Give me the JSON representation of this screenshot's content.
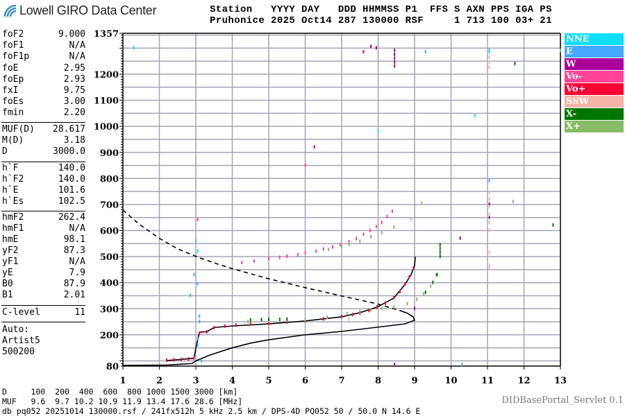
{
  "logo": {
    "text": "Lowell GIRO Data Center"
  },
  "header": {
    "line1": "Station   YYYY DAY   DDD HHMMSS P1  FFS S AXN PPS IGA PS",
    "line2": "Pruhonice 2025 Oct14 287 130000 RSF     1 713 100 03+ 21"
  },
  "params": [
    {
      "label": "foF2",
      "value": "9.000"
    },
    {
      "label": "foF1",
      "value": "N/A"
    },
    {
      "label": "foF1p",
      "value": "N/A"
    },
    {
      "label": "foE",
      "value": "2.95"
    },
    {
      "label": "foEp",
      "value": "2.93"
    },
    {
      "label": "fxI",
      "value": "9.75"
    },
    {
      "label": "foEs",
      "value": "3.00"
    },
    {
      "label": "fmin",
      "value": "2.20"
    },
    {
      "label": "MUF(D)",
      "value": "28.617"
    },
    {
      "label": "M(D)",
      "value": "3.18"
    },
    {
      "label": "D",
      "value": "3000.0"
    },
    {
      "label": "h`F",
      "value": "140.0"
    },
    {
      "label": "h`F2",
      "value": "140.0"
    },
    {
      "label": "h`E",
      "value": "101.6"
    },
    {
      "label": "h`Es",
      "value": "102.5"
    },
    {
      "label": "hmF2",
      "value": "262.4"
    },
    {
      "label": "hmF1",
      "value": "N/A"
    },
    {
      "label": "hmE",
      "value": "98.1"
    },
    {
      "label": "yF2",
      "value": "87.3"
    },
    {
      "label": "yF1",
      "value": "N/A"
    },
    {
      "label": "yE",
      "value": "7.9"
    },
    {
      "label": "B0",
      "value": "87.9"
    },
    {
      "label": "B1",
      "value": "2.01"
    },
    {
      "label": "C-level",
      "value": "11"
    }
  ],
  "autoscaling": {
    "line1": "Auto:",
    "line2": "Artist5",
    "line3": "500200"
  },
  "bottom": {
    "d_row": "D     100  200  400  600  800 1000 1500 3000 [km]",
    "muf_row": "MUF   9.6  9.7 10.2 10.9 11.9 13.4 17.6 28.6 [MHz]",
    "footer": "db pq052 20251014 130000.rsf / 241fx512h 5 kHz 2.5 km / DPS-4D PQ052 50 / 50.0 N 14.6 E",
    "servlet": "DIDBasePortal_Servlet 0.1"
  },
  "chart_data": {
    "type": "scatter",
    "xlim": [
      1,
      13
    ],
    "ylim": [
      80,
      1357
    ],
    "x_ticks": [
      "1",
      "2",
      "3",
      "4",
      "5",
      "6",
      "7",
      "8",
      "9",
      "10",
      "11",
      "12",
      "13"
    ],
    "y_ticks": [
      "80",
      "200",
      "300",
      "400",
      "500",
      "600",
      "700",
      "800",
      "900",
      "1000",
      "1100",
      "1200",
      "1357"
    ],
    "grid": true,
    "grid_x_step": 1,
    "grid_y_step": 50,
    "legend_position": "right",
    "legend": [
      {
        "name": "NNE",
        "color": "#11ddff"
      },
      {
        "name": "E",
        "color": "#44aaff"
      },
      {
        "name": "W",
        "color": "#aa0099"
      },
      {
        "name": "Vo-",
        "color": "#ff4499"
      },
      {
        "name": "Vo+",
        "color": "#ff0033"
      },
      {
        "name": "SSW",
        "color": "#f4b4a8"
      },
      {
        "name": "X-",
        "color": "#007700"
      },
      {
        "name": "X+",
        "color": "#88bb66"
      }
    ],
    "series": [
      {
        "name": "Vo+",
        "points": [
          [
            2.2,
            101
          ],
          [
            2.4,
            103
          ],
          [
            2.6,
            104
          ],
          [
            2.8,
            106
          ],
          [
            2.95,
            110
          ],
          [
            3.1,
            205
          ],
          [
            3.3,
            210
          ],
          [
            3.5,
            226
          ],
          [
            3.8,
            232
          ],
          [
            4.1,
            236
          ],
          [
            4.5,
            240
          ],
          [
            5.0,
            243
          ],
          [
            5.5,
            248
          ],
          [
            6.0,
            253
          ],
          [
            6.5,
            260
          ],
          [
            7.0,
            269
          ],
          [
            7.3,
            276
          ],
          [
            7.5,
            282
          ],
          [
            7.75,
            292
          ],
          [
            7.97,
            306
          ],
          [
            8.2,
            320
          ],
          [
            8.43,
            341
          ],
          [
            8.6,
            365
          ],
          [
            8.74,
            394
          ],
          [
            8.85,
            420
          ],
          [
            8.97,
            455
          ],
          [
            7.6,
            1285
          ],
          [
            6.25,
            920
          ]
        ]
      },
      {
        "name": "Vo-",
        "points": [
          [
            4.26,
            476
          ],
          [
            4.6,
            482
          ],
          [
            5.0,
            492
          ],
          [
            5.3,
            496
          ],
          [
            5.5,
            500
          ],
          [
            5.8,
            506
          ],
          [
            6.0,
            514
          ],
          [
            6.3,
            520
          ],
          [
            6.5,
            528
          ],
          [
            6.75,
            536
          ],
          [
            6.96,
            545
          ],
          [
            7.2,
            556
          ],
          [
            7.4,
            568
          ],
          [
            7.6,
            584
          ],
          [
            7.78,
            599
          ],
          [
            7.95,
            614
          ],
          [
            8.1,
            630
          ],
          [
            8.25,
            652
          ],
          [
            8.39,
            673
          ],
          [
            6.0,
            850
          ],
          [
            3.05,
            640
          ]
        ]
      },
      {
        "name": "X+",
        "points": [
          [
            4.43,
            250
          ],
          [
            5.0,
            253
          ],
          [
            5.5,
            255
          ],
          [
            6.0,
            256
          ],
          [
            6.6,
            266
          ],
          [
            7.15,
            280
          ],
          [
            7.5,
            288
          ],
          [
            7.8,
            295
          ],
          [
            8.1,
            300
          ],
          [
            8.43,
            306
          ],
          [
            8.8,
            318
          ],
          [
            9.06,
            335
          ],
          [
            9.25,
            355
          ],
          [
            9.44,
            386
          ],
          [
            9.59,
            429
          ],
          [
            6.64,
            527
          ],
          [
            7.0,
            538
          ],
          [
            7.2,
            545
          ],
          [
            7.5,
            558
          ],
          [
            7.8,
            575
          ],
          [
            8.1,
            590
          ],
          [
            8.43,
            612
          ],
          [
            9.2,
            705
          ],
          [
            11.7,
            710
          ],
          [
            13.0,
            1290
          ]
        ]
      },
      {
        "name": "X-",
        "points": [
          [
            4.5,
            256
          ],
          [
            4.8,
            257
          ],
          [
            5.0,
            258
          ],
          [
            5.3,
            258
          ],
          [
            5.5,
            259
          ],
          [
            9.3,
            362
          ],
          [
            9.5,
            400
          ],
          [
            9.62,
            430
          ],
          [
            9.7,
            500
          ],
          [
            9.7,
            515
          ],
          [
            9.7,
            530
          ],
          [
            9.7,
            545
          ],
          [
            11.75,
            1240
          ],
          [
            12.8,
            620
          ]
        ]
      },
      {
        "name": "E",
        "points": [
          [
            3.0,
            560
          ],
          [
            3.05,
            520
          ],
          [
            3.05,
            395
          ],
          [
            3.1,
            270
          ],
          [
            3.1,
            250
          ],
          [
            2.85,
            350
          ],
          [
            2.95,
            430
          ],
          [
            3.05,
            185
          ],
          [
            3.05,
            160
          ],
          [
            11.05,
            1290
          ],
          [
            11.05,
            790
          ],
          [
            10.3,
            85
          ],
          [
            9.3,
            1285
          ],
          [
            3.15,
            100
          ]
        ]
      },
      {
        "name": "W",
        "points": [
          [
            8.45,
            1290
          ],
          [
            8.45,
            1275
          ],
          [
            8.45,
            1260
          ],
          [
            8.45,
            1245
          ],
          [
            8.45,
            1230
          ],
          [
            7.95,
            1300
          ],
          [
            7.8,
            1305
          ],
          [
            10.25,
            570
          ],
          [
            9.0,
            300
          ],
          [
            8.45,
            85
          ],
          [
            11.05,
            700
          ],
          [
            11.05,
            650
          ]
        ]
      },
      {
        "name": "SSW",
        "points": [
          [
            11.05,
            1265
          ],
          [
            11.05,
            1245
          ],
          [
            11.05,
            1225
          ],
          [
            11.05,
            745
          ],
          [
            11.05,
            720
          ],
          [
            11.05,
            690
          ],
          [
            11.05,
            660
          ],
          [
            11.05,
            630
          ],
          [
            11.05,
            600
          ],
          [
            11.05,
            515
          ],
          [
            11.05,
            465
          ],
          [
            11.05,
            455
          ],
          [
            7.2,
            260
          ],
          [
            8.9,
            640
          ]
        ]
      },
      {
        "name": "NNE",
        "points": [
          [
            10.65,
            1040
          ],
          [
            11.05,
            1285
          ],
          [
            8.0,
            980
          ],
          [
            3.05,
            520
          ],
          [
            1.3,
            1300
          ]
        ]
      }
    ],
    "curves": [
      {
        "style": "solid",
        "points": [
          [
            2.2,
            101
          ],
          [
            2.95,
            110
          ],
          [
            3.0,
            150
          ],
          [
            3.1,
            210
          ],
          [
            3.3,
            212
          ],
          [
            3.5,
            228
          ],
          [
            4.0,
            234
          ],
          [
            5.0,
            242
          ],
          [
            6.0,
            253
          ],
          [
            7.0,
            269
          ],
          [
            7.5,
            285
          ],
          [
            7.97,
            306
          ],
          [
            8.43,
            341
          ],
          [
            8.74,
            394
          ],
          [
            8.9,
            430
          ],
          [
            9.0,
            465
          ],
          [
            9.02,
            500
          ]
        ]
      },
      {
        "style": "solid",
        "points": [
          [
            1.0,
            83
          ],
          [
            2.2,
            84
          ],
          [
            2.9,
            90
          ],
          [
            3.0,
            100
          ],
          [
            3.34,
            120
          ],
          [
            3.97,
            149
          ],
          [
            4.5,
            168
          ],
          [
            5.0,
            181
          ],
          [
            6.0,
            200
          ],
          [
            7.0,
            213
          ],
          [
            7.97,
            229
          ],
          [
            8.74,
            242
          ],
          [
            9.0,
            256
          ],
          [
            8.96,
            269
          ],
          [
            8.8,
            283
          ],
          [
            8.6,
            293
          ]
        ]
      },
      {
        "style": "dashed",
        "points": [
          [
            1.0,
            679
          ],
          [
            1.44,
            625
          ],
          [
            2.0,
            570
          ],
          [
            2.5,
            530
          ],
          [
            3.02,
            500
          ],
          [
            3.5,
            476
          ],
          [
            3.97,
            455
          ],
          [
            5.0,
            415
          ],
          [
            6.0,
            381
          ],
          [
            7.0,
            349
          ],
          [
            7.97,
            319
          ],
          [
            8.6,
            293
          ]
        ]
      }
    ]
  }
}
